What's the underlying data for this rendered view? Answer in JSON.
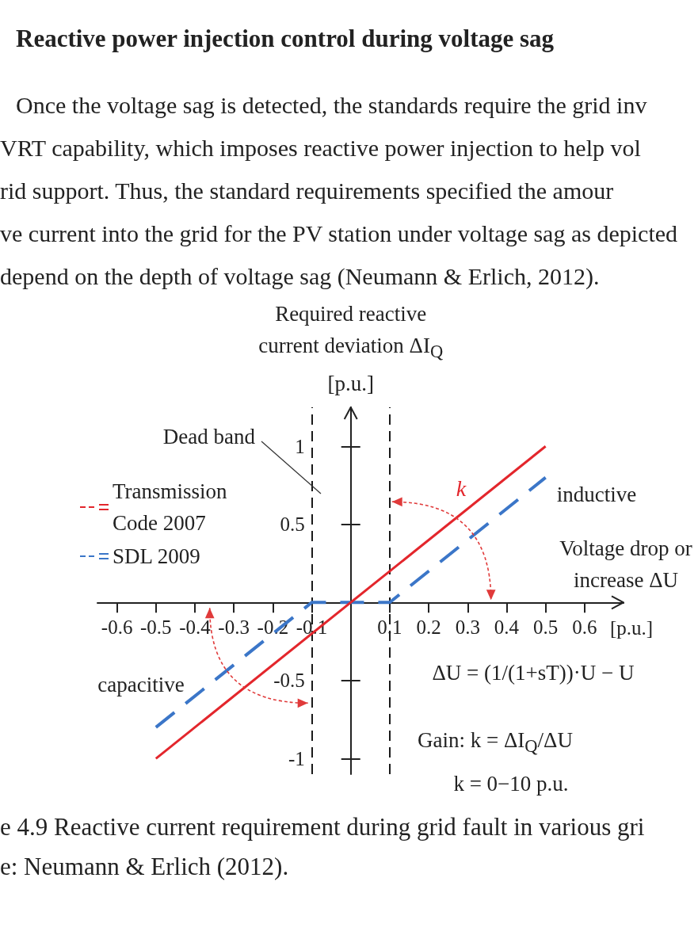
{
  "chart_data": {
    "type": "line",
    "title": "Reactive power injection control during voltage sag",
    "subtitle": "Once the voltage sag is detected, the standards require the grid inv\nVRT capability, which imposes reactive power injection to help vol\nrid support. Thus, the standard requirements specified the amour\nve current into the grid for the PV station under voltage sag as depicted\ndepend on the depth of voltage sag (Neumann & Erlich, 2012).",
    "xlabel": "Voltage drop or increase ΔU",
    "ylabel": "Required reactive current deviation ΔI$_{Q}$ [p.u.]",
    "series": [
      {
        "name": "Transmission Code 2007",
        "color": "#e3262c",
        "x": [
          -0.5,
          0.5
        ],
        "values": [
          -1,
          1
        ]
      },
      {
        "name": "SDL 2009",
        "color": "#3b76c8",
        "x": [
          -0.5,
          -0.1,
          0.1,
          0.5
        ],
        "values": [
          -0.8,
          0,
          0,
          0.8
        ],
        "line_style": "dashed"
      }
    ],
    "xlim": [
      -0.65,
      0.7
    ],
    "ylim": [
      -1.1,
      1.25
    ],
    "xticks": [
      -0.6,
      -0.5,
      -0.4,
      -0.3,
      -0.2,
      -0.1,
      0.1,
      0.2,
      0.3,
      0.4,
      0.5,
      0.6
    ],
    "yticks": [
      -1,
      -0.5,
      0.5,
      1
    ],
    "ref_lines": [
      {
        "axis": "x",
        "value": -0.1,
        "color": "#1a1a1a",
        "line_style": "dashed"
      },
      {
        "axis": "x",
        "value": 0.1,
        "color": "#1a1a1a",
        "line_style": "dashed"
      }
    ],
    "annotations": [
      "Dead band",
      "inductive",
      "capacitive",
      "k",
      "ΔU = (1/(1+sT))·U − U",
      "Gain: k = ΔI$_{Q}$/ΔU",
      "k = 0−10 p.u.",
      "[p.u.]",
      "e 4.9 Reactive current requirement during grid fault in various gri",
      "e: Neumann & Erlich (2012)."
    ],
    "marker": "none",
    "legend": "top left"
  }
}
